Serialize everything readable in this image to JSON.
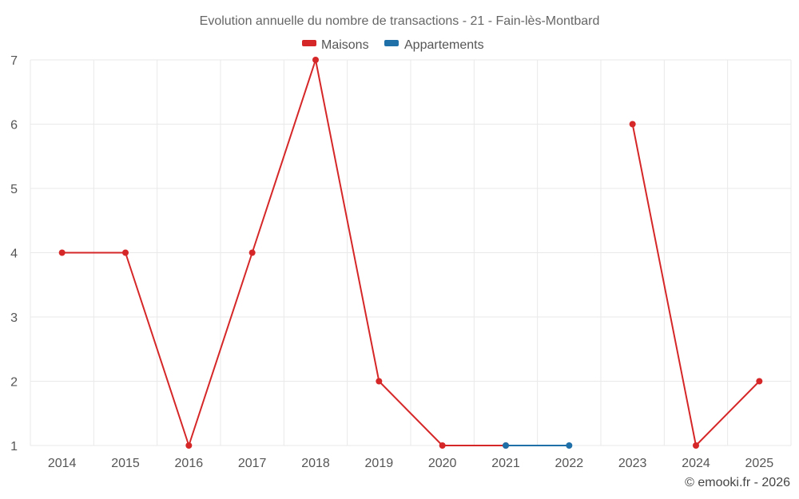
{
  "chart_data": {
    "type": "line",
    "title": "Evolution annuelle du nombre de transactions - 21 - Fain-lès-Montbard",
    "categories": [
      "2014",
      "2015",
      "2016",
      "2017",
      "2018",
      "2019",
      "2020",
      "2021",
      "2022",
      "2023",
      "2024",
      "2025"
    ],
    "ylim": [
      1,
      7
    ],
    "yticks": [
      1,
      2,
      3,
      4,
      5,
      6,
      7
    ],
    "grid": true,
    "legend_position": "top-center",
    "series": [
      {
        "name": "Maisons",
        "color": "#d62728",
        "values": [
          4,
          4,
          1,
          4,
          7,
          2,
          1,
          1,
          null,
          6,
          1,
          2
        ]
      },
      {
        "name": "Appartements",
        "color": "#1f6fa8",
        "values": [
          null,
          null,
          null,
          null,
          null,
          null,
          null,
          1,
          1,
          null,
          null,
          null
        ]
      }
    ]
  },
  "credit": "© emooki.fr - 2026"
}
